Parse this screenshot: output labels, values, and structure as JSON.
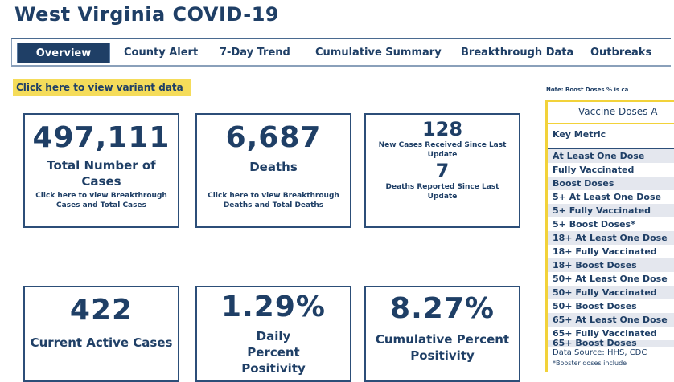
{
  "header": {
    "title": "West Virginia COVID-19"
  },
  "nav": {
    "tabs": [
      {
        "label": "Overview",
        "active": true
      },
      {
        "label": "County Alert",
        "active": false
      },
      {
        "label": "7-Day Trend",
        "active": false
      },
      {
        "label": "Cumulative Summary",
        "active": false
      },
      {
        "label": "Breakthrough Data",
        "active": false
      },
      {
        "label": "Outbreaks",
        "active": false
      }
    ]
  },
  "variant_link": "Click here to view variant data",
  "cards": {
    "total_cases": {
      "value": "497,111",
      "label": "Total Number of Cases",
      "link": "Click here to view Breakthrough Cases and Total Cases"
    },
    "deaths": {
      "value": "6,687",
      "label": "Deaths",
      "link": "Click here to view Breakthrough Deaths and Total Deaths"
    },
    "recent": {
      "new_cases_value": "128",
      "new_cases_label": "New Cases Received Since Last Update",
      "new_deaths_value": "7",
      "new_deaths_label": "Deaths Reported Since Last Update"
    },
    "active": {
      "value": "422",
      "label": "Current Active Cases"
    },
    "daily_pos": {
      "value": "1.29%",
      "label": "Daily Percent Positivity"
    },
    "cum_pos": {
      "value": "8.27%",
      "label": "Cumulative Percent Positivity"
    }
  },
  "vaccine": {
    "note": "Note: Boost Doses % is ca",
    "title": "Vaccine Doses A",
    "key_metric": "Key Metric",
    "rows": [
      "At Least One Dose",
      "Fully Vaccinated",
      "Boost Doses",
      "5+ At Least One Dose",
      "5+ Fully Vaccinated",
      "5+ Boost Doses*",
      "18+ At Least One Dose",
      "18+ Fully Vaccinated",
      "18+ Boost Doses",
      "50+ At Least One Dose",
      "50+ Fully Vaccinated",
      "50+ Boost Doses",
      "65+ At Least One Dose",
      "65+ Fully Vaccinated",
      "65+ Boost Doses"
    ],
    "source": "Data Source: HHS, CDC",
    "footnote": "*Booster doses include"
  }
}
